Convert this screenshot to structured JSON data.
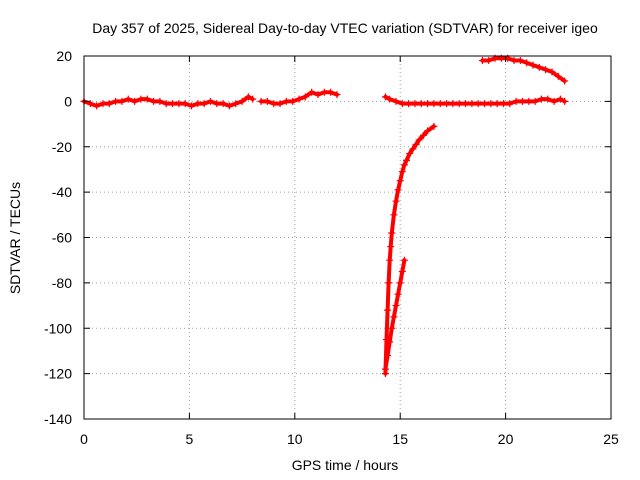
{
  "chart_data": {
    "type": "scatter",
    "title": "Day 357 of 2025, Sidereal Day-to-day VTEC variation (SDTVAR) for receiver igeo",
    "xlabel": "GPS time / hours",
    "ylabel": "SDTVAR / TECUs",
    "xlim": [
      0,
      25
    ],
    "ylim": [
      -140,
      20
    ],
    "xticks": [
      "0",
      "5",
      "10",
      "15",
      "20",
      "25"
    ],
    "yticks": [
      "20",
      "0",
      "-20",
      "-40",
      "-60",
      "-80",
      "-100",
      "-120",
      "-140"
    ],
    "grid": true,
    "legend": "none",
    "marker": "+",
    "color": "#ff0000",
    "series": [
      {
        "x": [
          0.0,
          0.3,
          0.6,
          0.9,
          1.2,
          1.5,
          1.8,
          2.1,
          2.4,
          2.7,
          3.0,
          3.3,
          3.6,
          3.9,
          4.2,
          4.5,
          4.8,
          5.1,
          5.4,
          5.7,
          6.0,
          6.3,
          6.6,
          6.9,
          7.2,
          7.5,
          7.8,
          8.0
        ],
        "y": [
          0,
          -1,
          -2,
          -1,
          -1,
          0,
          0,
          1,
          0,
          1,
          1,
          0,
          0,
          -1,
          -1,
          -1,
          -1,
          -2,
          -1,
          -1,
          0,
          -1,
          -1,
          -2,
          -1,
          0,
          2,
          1
        ]
      },
      {
        "x": [
          8.4,
          8.7,
          9.0,
          9.3,
          9.6,
          9.9,
          10.2,
          10.5,
          10.8,
          11.1,
          11.4,
          11.7,
          12.0
        ],
        "y": [
          0,
          0,
          -1,
          -1,
          0,
          0,
          1,
          2,
          4,
          3,
          4,
          4,
          3
        ]
      },
      {
        "x": [
          14.3,
          14.5,
          14.8,
          15.1,
          15.4,
          15.7,
          16.0,
          16.3,
          16.6,
          16.9,
          17.2,
          17.5,
          17.8,
          18.1,
          18.4,
          18.7,
          19.0,
          19.3,
          19.6,
          19.9,
          20.2,
          20.5,
          20.8,
          21.1,
          21.4,
          21.7,
          22.0,
          22.3,
          22.6,
          22.8
        ],
        "y": [
          2,
          1,
          0,
          -1,
          -1,
          -1,
          -1,
          -1,
          -1,
          -1,
          -1,
          -1,
          -1,
          -1,
          -1,
          -1,
          -1,
          -1,
          -1,
          -1,
          -1,
          0,
          0,
          0,
          0,
          1,
          1,
          0,
          1,
          0
        ]
      },
      {
        "x": [
          18.9,
          19.2,
          19.5,
          19.8,
          20.1,
          20.4,
          20.7,
          21.0,
          21.3,
          21.6,
          21.9,
          22.2,
          22.5,
          22.8
        ],
        "y": [
          18,
          18,
          19,
          19,
          19,
          18,
          18,
          17,
          16,
          15,
          14,
          13,
          11,
          9
        ]
      },
      {
        "x": [
          14.3,
          14.35,
          14.4,
          14.45,
          14.5,
          14.55,
          14.6,
          14.7,
          14.8,
          14.9,
          15.0,
          15.1,
          15.2,
          15.3,
          15.45,
          15.6,
          15.75,
          15.9,
          16.1,
          16.3,
          16.6
        ],
        "y": [
          -120,
          -105,
          -92,
          -80,
          -70,
          -64,
          -58,
          -50,
          -44,
          -39,
          -35,
          -31,
          -28,
          -26,
          -23,
          -21,
          -19,
          -17,
          -15,
          -13,
          -11
        ]
      },
      {
        "x": [
          14.3,
          14.4,
          14.5,
          14.6,
          14.7,
          14.8,
          14.9,
          15.0,
          15.1,
          15.2
        ],
        "y": [
          -118,
          -112,
          -106,
          -100,
          -95,
          -90,
          -85,
          -80,
          -75,
          -70
        ]
      }
    ]
  }
}
